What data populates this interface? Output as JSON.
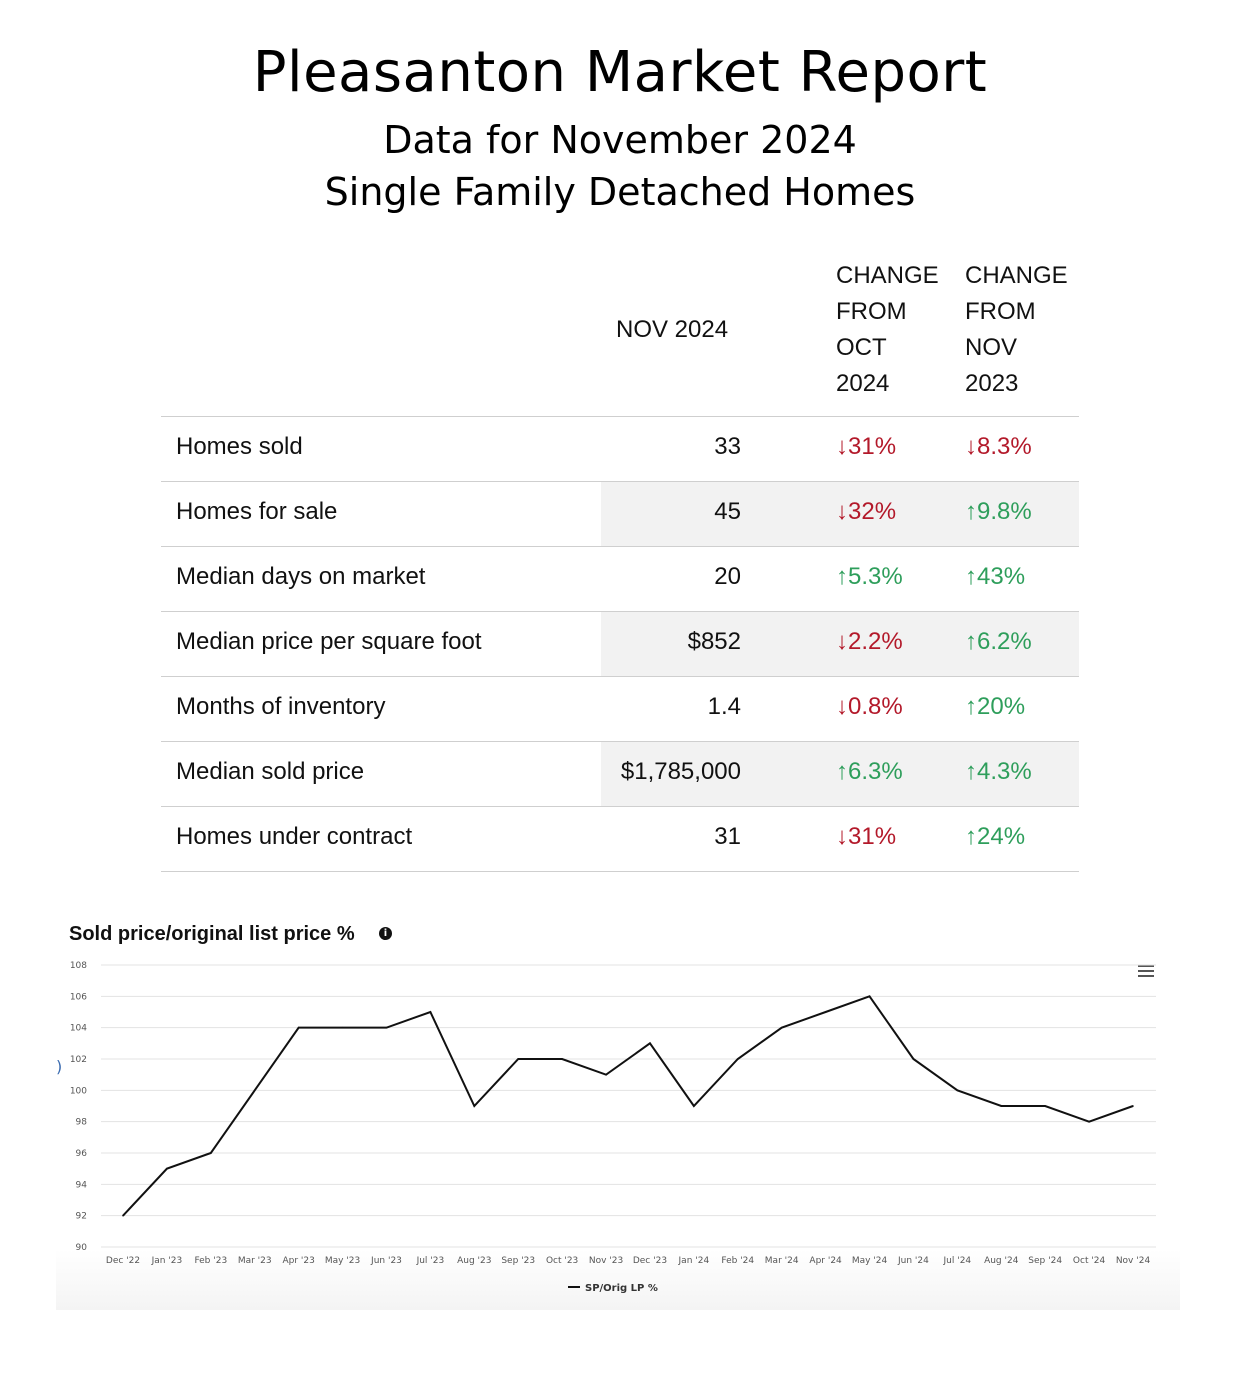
{
  "header": {
    "title": "Pleasanton Market Report",
    "subtitle1": "Data for November 2024",
    "subtitle2": "Single Family Detached Homes"
  },
  "table": {
    "col_nov": "NOV 2024",
    "col_oct_lines": [
      "CHANGE",
      "FROM",
      "OCT",
      "2024"
    ],
    "col_yoy_lines": [
      "CHANGE",
      "FROM",
      "NOV",
      "2023"
    ],
    "rows": [
      {
        "label": "Homes sold",
        "value": "33",
        "oct": "31%",
        "oct_dir": "down",
        "yoy": "8.3%",
        "yoy_dir": "down"
      },
      {
        "label": "Homes for sale",
        "value": "45",
        "oct": "32%",
        "oct_dir": "down",
        "yoy": "9.8%",
        "yoy_dir": "up"
      },
      {
        "label": "Median days on market",
        "value": "20",
        "oct": "5.3%",
        "oct_dir": "up",
        "yoy": "43%",
        "yoy_dir": "up"
      },
      {
        "label": "Median price per square foot",
        "value": "$852",
        "oct": "2.2%",
        "oct_dir": "down",
        "yoy": "6.2%",
        "yoy_dir": "up"
      },
      {
        "label": "Months of inventory",
        "value": "1.4",
        "oct": "0.8%",
        "oct_dir": "down",
        "yoy": "20%",
        "yoy_dir": "up"
      },
      {
        "label": "Median sold price",
        "value": "$1,785,000",
        "oct": "6.3%",
        "oct_dir": "up",
        "yoy": "4.3%",
        "yoy_dir": "up"
      },
      {
        "label": "Homes under contract",
        "value": "31",
        "oct": "31%",
        "oct_dir": "down",
        "yoy": "24%",
        "yoy_dir": "up"
      }
    ],
    "colors": {
      "down": "#b3192a",
      "up": "#2e9e5b"
    }
  },
  "chart_data": {
    "type": "line",
    "title": "Sold price/original list price %",
    "categories": [
      "Dec '22",
      "Jan '23",
      "Feb '23",
      "Mar '23",
      "Apr '23",
      "May '23",
      "Jun '23",
      "Jul '23",
      "Aug '23",
      "Sep '23",
      "Oct '23",
      "Nov '23",
      "Dec '23",
      "Jan '24",
      "Feb '24",
      "Mar '24",
      "Apr '24",
      "May '24",
      "Jun '24",
      "Jul '24",
      "Aug '24",
      "Sep '24",
      "Oct '24",
      "Nov '24"
    ],
    "series": [
      {
        "name": "SP/Orig LP %",
        "color": "#111111",
        "values": [
          92,
          95,
          96,
          100,
          104,
          104,
          104,
          105,
          99,
          102,
          102,
          101,
          103,
          99,
          102,
          104,
          105,
          106,
          102,
          100,
          99,
          99,
          98,
          99
        ]
      }
    ],
    "yticks": [
      90,
      92,
      94,
      96,
      98,
      100,
      102,
      104,
      106,
      108
    ],
    "ylim": [
      90,
      108
    ],
    "grid": true,
    "legend": "bottom-center",
    "icons": [
      "info-icon",
      "menu-icon"
    ]
  }
}
